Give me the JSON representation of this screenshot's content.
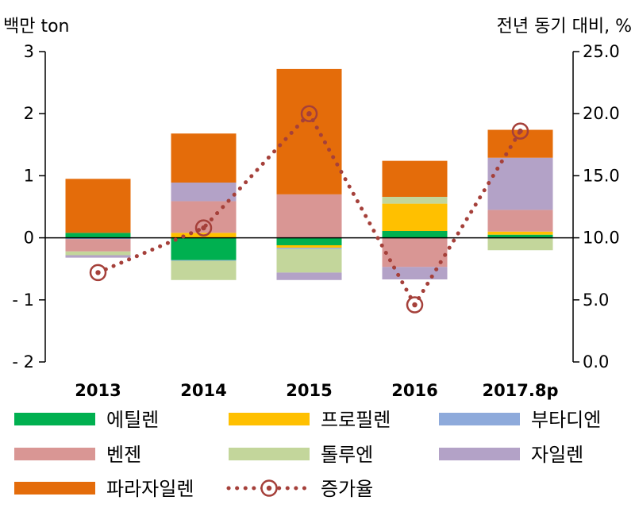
{
  "chart_data": {
    "type": "bar",
    "subtype": "stacked bar with line on secondary axis",
    "left_axis_unit": "백만 ton",
    "right_axis_unit": "전년 동기 대비, %",
    "categories": [
      "2013",
      "2014",
      "2015",
      "2016",
      "2017.8p"
    ],
    "left_ticks": [
      "3",
      "2",
      "1",
      "0",
      "- 1",
      "- 2"
    ],
    "right_ticks": [
      "25.0",
      "20.0",
      "15.0",
      "10.0",
      "5.0",
      "0.0"
    ],
    "ylim_left": [
      -2,
      3
    ],
    "ylim_right": [
      0,
      25
    ],
    "series": [
      {
        "name": "에틸렌",
        "color": "#00b050",
        "values": [
          0.08,
          -0.36,
          -0.12,
          0.11,
          0.05
        ]
      },
      {
        "name": "프로필렌",
        "color": "#ffc000",
        "values": [
          0.0,
          0.08,
          -0.04,
          0.44,
          0.05
        ]
      },
      {
        "name": "부타디엔",
        "color": "#8eaadb",
        "values": [
          -0.02,
          -0.01,
          -0.02,
          0.0,
          0.0
        ]
      },
      {
        "name": "벤젠",
        "color": "#d99694",
        "values": [
          -0.2,
          0.51,
          0.7,
          -0.47,
          0.35
        ]
      },
      {
        "name": "톨루엔",
        "color": "#c3d69b",
        "values": [
          -0.06,
          -0.31,
          -0.38,
          0.11,
          -0.2
        ]
      },
      {
        "name": "자일렌",
        "color": "#b3a2c7",
        "values": [
          -0.04,
          0.3,
          -0.12,
          -0.2,
          0.84
        ]
      },
      {
        "name": "파라자일렌",
        "color": "#e46c0a",
        "values": [
          0.87,
          0.79,
          2.02,
          0.58,
          0.45
        ]
      }
    ],
    "line": {
      "name": "증가율",
      "color": "#a5403a",
      "values": [
        7.2,
        10.8,
        20.0,
        4.6,
        18.6
      ]
    }
  }
}
